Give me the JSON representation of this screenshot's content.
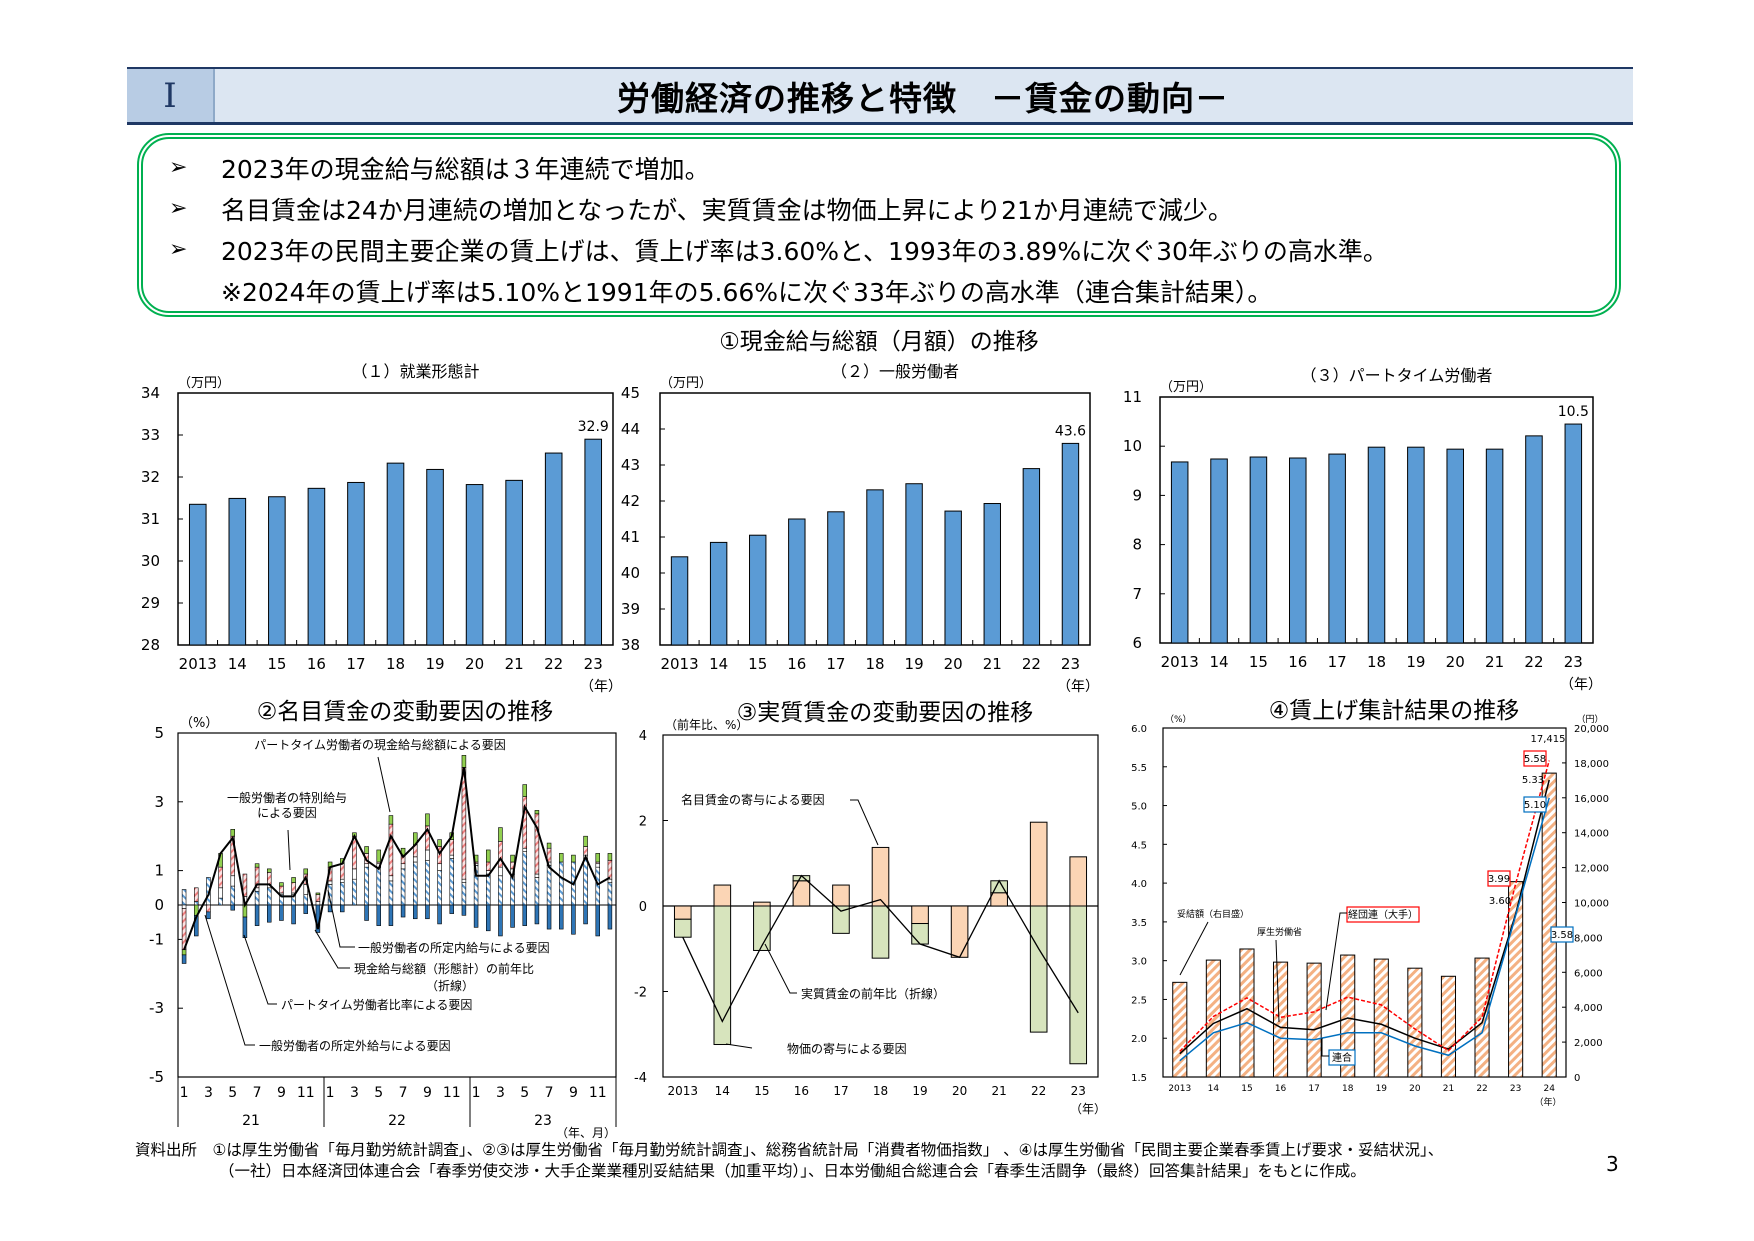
{
  "header": {
    "roman": "Ⅰ",
    "title": "労働経済の推移と特徴　－賃金の動向－"
  },
  "summary": {
    "bullets": [
      "2023年の現金給与総額は３年連続で増加。",
      "名目賃金は24か月連続の増加となったが、実質賃金は物価上昇により21か月連続で減少。",
      "2023年の民間主要企業の賃上げは、賃上げ率は3.60%と、1993年の3.89%に次ぐ30年ぶりの高水準。"
    ],
    "note": "※2024年の賃上げ率は5.10%と1991年の5.66%に次ぐ33年ぶりの高水準（連合集計結果）。",
    "bullet_icon": "arrowhead-bullet-icon"
  },
  "section1_title": "①現金給与総額（月額）の推移",
  "chart_data": [
    {
      "type": "bar",
      "title": "（１）就業形態計",
      "ylabel": "（万円）",
      "xlabel": "（年）",
      "categories": [
        "2013",
        "14",
        "15",
        "16",
        "17",
        "18",
        "19",
        "20",
        "21",
        "22",
        "23"
      ],
      "values": [
        31.35,
        31.49,
        31.53,
        31.73,
        31.87,
        32.33,
        32.18,
        31.82,
        31.92,
        32.57,
        32.9
      ],
      "value_label": "32.9",
      "ylim": [
        28,
        34
      ],
      "yticks": [
        "28",
        "29",
        "30",
        "31",
        "32",
        "33",
        "34"
      ],
      "color": "#5b9bd5",
      "grid": false
    },
    {
      "type": "bar",
      "title": "（２）一般労働者",
      "ylabel": "（万円）",
      "xlabel": "（年）",
      "categories": [
        "2013",
        "14",
        "15",
        "16",
        "17",
        "18",
        "19",
        "20",
        "21",
        "22",
        "23"
      ],
      "values": [
        40.45,
        40.85,
        41.05,
        41.5,
        41.7,
        42.31,
        42.48,
        41.72,
        41.93,
        42.9,
        43.6
      ],
      "value_label": "43.6",
      "ylim": [
        38,
        45
      ],
      "yticks": [
        "38",
        "39",
        "40",
        "41",
        "42",
        "43",
        "44",
        "45"
      ],
      "color": "#5b9bd5",
      "grid": false
    },
    {
      "type": "bar",
      "title": "（３）パートタイム労働者",
      "ylabel": "（万円）",
      "xlabel": "（年）",
      "categories": [
        "2013",
        "14",
        "15",
        "16",
        "17",
        "18",
        "19",
        "20",
        "21",
        "22",
        "23"
      ],
      "values": [
        9.68,
        9.74,
        9.78,
        9.76,
        9.84,
        9.98,
        9.98,
        9.94,
        9.94,
        10.21,
        10.45
      ],
      "value_label": "10.5",
      "ylim": [
        6,
        11
      ],
      "yticks": [
        "6",
        "7",
        "8",
        "9",
        "10",
        "11"
      ],
      "color": "#5b9bd5",
      "grid": false
    },
    {
      "type": "bar",
      "stacked": true,
      "title": "②名目賃金の変動要因の推移",
      "ylabel": "（%）",
      "xlabel": "（年、月）",
      "month_labels": [
        "1",
        "3",
        "5",
        "7",
        "9",
        "11"
      ],
      "years": [
        "21",
        "22",
        "23"
      ],
      "ylim": [
        -5,
        5
      ],
      "yticks": [
        "5",
        "3",
        "1",
        "0",
        "-1",
        "-3",
        "-5"
      ],
      "series": [
        {
          "name": "一般労働者の所定内給与による要因",
          "color": "#9dc3e6",
          "values": [
            0.45,
            0.1,
            0.8,
            0.2,
            0.55,
            0.0,
            0.4,
            0.5,
            0.3,
            0.3,
            0.3,
            0.0,
            0.6,
            0.65,
            0.75,
            1.1,
            1.1,
            0.7,
            1.05,
            1.25,
            1.3,
            1.0,
            1.35,
            0.65,
            1.15,
            0.9,
            0.85,
            0.9,
            1.55,
            0.8,
            1.15,
            1.25,
            1.25,
            1.35,
            1.1,
            0.65
          ]
        },
        {
          "name": "一般労働者の所定外給与による要因",
          "color": "#ffffff",
          "values": [
            -0.1,
            0.0,
            0.0,
            0.3,
            0.3,
            0.25,
            0.1,
            0.1,
            0.05,
            0.05,
            0.3,
            0.1,
            0.1,
            0.1,
            0.3,
            0.1,
            0.1,
            0.15,
            0.15,
            0.15,
            0.3,
            0.2,
            0.1,
            0.1,
            0.05,
            0.1,
            0.25,
            0.15,
            0.1,
            0.1,
            0.1,
            0.0,
            0.0,
            0.1,
            0.1,
            0.1
          ]
        },
        {
          "name": "一般労働者の特別給与による要因",
          "color": "#f4b6b6",
          "values": [
            -1.2,
            0.4,
            -0.2,
            0.6,
            1.15,
            0.65,
            0.6,
            0.35,
            0.2,
            0.3,
            0.3,
            0.2,
            0.4,
            0.45,
            0.95,
            0.3,
            0.05,
            1.5,
            0.25,
            0.35,
            0.7,
            0.5,
            0.45,
            3.25,
            0.05,
            0.25,
            0.75,
            0.2,
            1.5,
            1.75,
            0.4,
            0.0,
            0.0,
            0.25,
            0.05,
            0.55
          ]
        },
        {
          "name": "パートタイム労働者の現金給与総額による要因",
          "color": "#92d050",
          "values": [
            -0.15,
            -0.3,
            0.0,
            0.4,
            0.2,
            -0.35,
            0.1,
            0.1,
            0.1,
            0.15,
            0.15,
            0.05,
            0.15,
            0.15,
            0.1,
            0.2,
            0.35,
            0.25,
            0.2,
            0.35,
            0.35,
            0.2,
            0.2,
            0.35,
            0.2,
            0.35,
            0.4,
            0.2,
            0.35,
            0.1,
            0.15,
            0.25,
            0.2,
            0.3,
            0.25,
            0.2
          ]
        },
        {
          "name": "パートタイム労働者比率による要因",
          "color": "#2e75b6",
          "values": [
            -0.25,
            -0.6,
            -0.2,
            0.0,
            -0.15,
            -0.6,
            -0.6,
            -0.5,
            -0.45,
            -0.55,
            -0.25,
            -0.8,
            -0.2,
            -0.2,
            0.0,
            -0.45,
            -0.6,
            -0.6,
            -0.35,
            -0.4,
            -0.4,
            -0.55,
            -0.25,
            -0.3,
            -0.65,
            -0.75,
            -0.9,
            -0.65,
            -0.6,
            -0.55,
            -0.7,
            -0.7,
            -0.85,
            -0.55,
            -0.9,
            -0.7
          ]
        }
      ],
      "line": {
        "name": "現金給与総額（形態計）の前年比",
        "name_sub": "（折線）",
        "values": [
          -1.3,
          -0.35,
          0.3,
          1.5,
          1.95,
          0.0,
          0.6,
          0.6,
          0.25,
          0.25,
          0.8,
          -0.7,
          1.1,
          1.2,
          2.0,
          1.3,
          1.05,
          2.0,
          1.4,
          1.75,
          2.2,
          1.5,
          2.0,
          4.0,
          0.85,
          0.85,
          1.35,
          0.8,
          2.85,
          2.25,
          1.1,
          0.8,
          0.6,
          1.4,
          0.6,
          0.8
        ]
      },
      "annotations": {
        "special_line1": "一般労働者の特別給与",
        "special_line2": "による要因"
      }
    },
    {
      "type": "bar",
      "stacked": true,
      "title": "③実質賃金の変動要因の推移",
      "ylabel": "（前年比、%）",
      "xlabel": "（年）",
      "categories": [
        "2013",
        "14",
        "15",
        "16",
        "17",
        "18",
        "19",
        "20",
        "21",
        "22",
        "23"
      ],
      "ylim": [
        -4,
        4
      ],
      "yticks": [
        "4",
        "2",
        "0",
        "-2",
        "-4"
      ],
      "series": [
        {
          "name": "名目賃金の寄与による要因",
          "color": "#fbd5b5",
          "values": [
            -0.31,
            0.49,
            0.09,
            0.59,
            0.49,
            1.37,
            -0.41,
            -1.2,
            0.31,
            1.96,
            1.15
          ]
        },
        {
          "name": "物価の寄与による要因",
          "color": "#d7e4bd",
          "values": [
            -0.42,
            -3.24,
            -1.04,
            0.12,
            -0.64,
            -1.22,
            -0.48,
            0.0,
            0.28,
            -2.95,
            -3.69
          ]
        }
      ],
      "line": {
        "name": "実質賃金の前年比（折線）",
        "values": [
          -0.73,
          -2.7,
          -0.93,
          0.71,
          -0.12,
          0.15,
          -0.89,
          -1.2,
          0.59,
          -1.0,
          -2.5
        ]
      }
    },
    {
      "type": "bar+line",
      "title": "④賃上げ集計結果の推移",
      "ylabel_left": "（%）",
      "ylabel_right": "（円）",
      "xlabel": "（年）",
      "categories": [
        "2013",
        "14",
        "15",
        "16",
        "17",
        "18",
        "19",
        "20",
        "21",
        "22",
        "23",
        "24"
      ],
      "ylim_left": [
        1.5,
        6.0
      ],
      "yticks_left": [
        "1.5",
        "2.0",
        "2.5",
        "3.0",
        "3.5",
        "4.0",
        "4.5",
        "5.0",
        "5.5",
        "6.0"
      ],
      "ylim_right": [
        0,
        20000
      ],
      "yticks_right": [
        "0",
        "2,000",
        "4,000",
        "6,000",
        "8,000",
        "10,000",
        "12,000",
        "14,000",
        "16,000",
        "18,000",
        "20,000"
      ],
      "bars": {
        "name": "妥結額（右目盛）",
        "color": "#f4b183",
        "values": [
          5425,
          6700,
          7336,
          6583,
          6525,
          6988,
          6757,
          6236,
          5772,
          6815,
          11197,
          17415
        ]
      },
      "series": [
        {
          "name": "厚生労働省",
          "color": "#000000",
          "values": [
            1.8,
            2.19,
            2.38,
            2.14,
            2.11,
            2.26,
            2.18,
            2.0,
            1.86,
            2.2,
            3.6,
            5.33
          ]
        },
        {
          "name": "経団連（大手）",
          "color": "#ff0000",
          "dashed": true,
          "values": [
            1.83,
            2.28,
            2.52,
            2.27,
            2.34,
            2.53,
            2.43,
            2.12,
            1.84,
            2.27,
            3.99,
            5.58
          ]
        },
        {
          "name": "連合",
          "color": "#0070c0",
          "values": [
            1.71,
            2.07,
            2.2,
            2.0,
            1.98,
            2.07,
            2.07,
            1.9,
            1.78,
            2.07,
            3.58,
            5.1
          ]
        }
      ],
      "data_labels": {
        "bar_2024": "17,415",
        "keidanren_2024": "5.58",
        "mhlw_2024": "5.33",
        "rengo_2024": "5.10",
        "keidanren_2023": "3.99",
        "mhlw_2023": "3.60",
        "rengo_2023": "3.58"
      }
    }
  ],
  "footer": {
    "source_label": "資料出所",
    "line1": "①は厚生労働省「毎月勤労統計調査」、②③は厚生労働省「毎月勤労統計調査」、総務省統計局「消費者物価指数」 、④は厚生労働省「民間主要企業春季賃上げ要求・妥結状況」、",
    "line2": "（一社）日本経済団体連合会「春季労使交渉・大手企業業種別妥結結果（加重平均）」、日本労働組合総連合会「春季生活闘争（最終）回答集計結果」をもとに作成。",
    "page": "3"
  }
}
